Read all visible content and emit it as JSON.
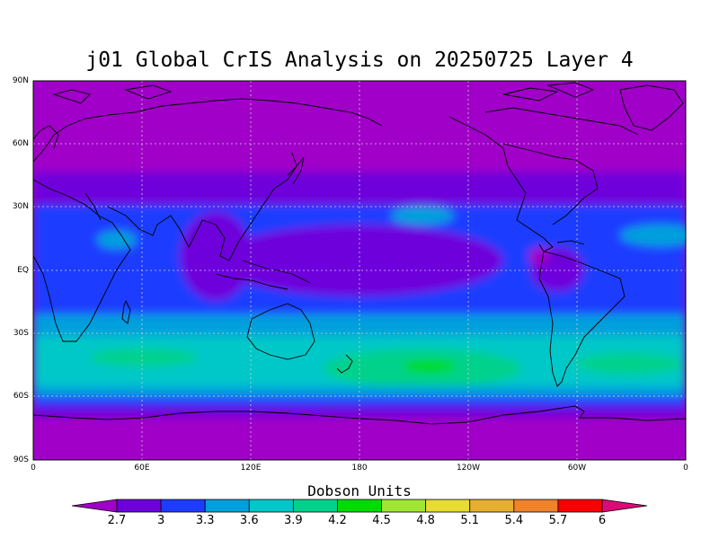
{
  "title": "j01 Global CrIS Analysis on 20250725 Layer 4",
  "lat_labels": [
    "90N",
    "60N",
    "30N",
    "EQ",
    "30S",
    "60S",
    "90S"
  ],
  "lon_labels": [
    "0",
    "60E",
    "120E",
    "180",
    "120W",
    "60W",
    "0"
  ],
  "colorbar": {
    "title": "Dobson Units",
    "ticks": [
      "2.7",
      "3",
      "3.3",
      "3.6",
      "3.9",
      "4.2",
      "4.5",
      "4.8",
      "5.1",
      "5.4",
      "5.7",
      "6"
    ],
    "colors": [
      "#a000c8",
      "#6e00dc",
      "#1e3cff",
      "#00a0dc",
      "#00c8c8",
      "#00d28c",
      "#00dc00",
      "#a0e632",
      "#e6dc32",
      "#e6af2d",
      "#f08228",
      "#fa0000",
      "#dc0a78"
    ]
  },
  "chart_data": {
    "type": "heatmap",
    "title": "j01 Global CrIS Analysis on 20250725 Layer 4",
    "units": "Dobson Units",
    "lat_range": [
      -90,
      90
    ],
    "lon_range": [
      0,
      360
    ],
    "levels": [
      2.7,
      3.0,
      3.3,
      3.6,
      3.9,
      4.2,
      4.5,
      4.8,
      5.1,
      5.4,
      5.7,
      6.0
    ],
    "zonal_bands": [
      {
        "lat": [
          45,
          90
        ],
        "value": "<2.7"
      },
      {
        "lat": [
          30,
          45
        ],
        "value": "2.7-3.0"
      },
      {
        "lat": [
          -20,
          30
        ],
        "value": "3.0-3.3"
      },
      {
        "lat": [
          -30,
          -20
        ],
        "value": "3.3-3.6"
      },
      {
        "lat": [
          -58,
          -30
        ],
        "value": "3.6-4.2"
      },
      {
        "lat": [
          -65,
          -58
        ],
        "value": "3.0-3.3"
      },
      {
        "lat": [
          -90,
          -65
        ],
        "value": "<2.7"
      }
    ],
    "maximum": {
      "lat": -45,
      "lon": 210,
      "value": "4.2-4.5"
    },
    "grid": true
  }
}
